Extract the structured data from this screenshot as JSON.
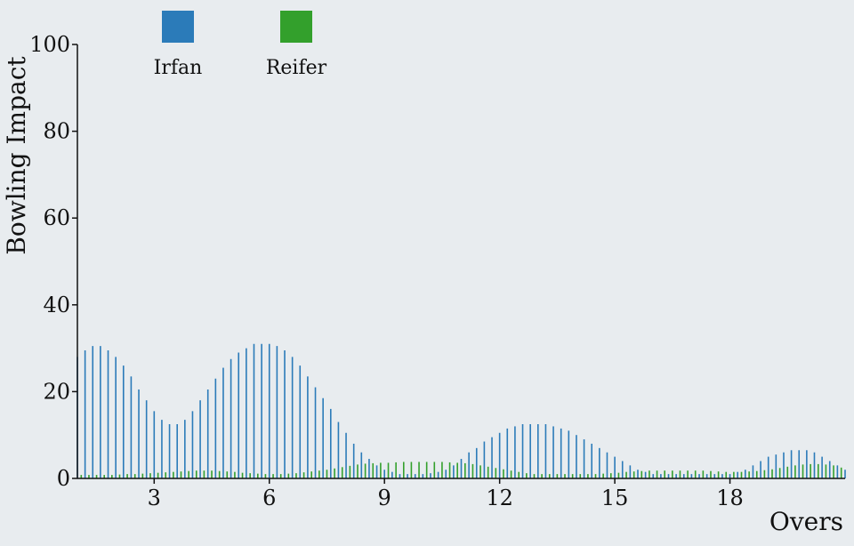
{
  "chart_data": {
    "type": "bar",
    "xlabel": "Overs",
    "ylabel": "Bowling Impact",
    "ylim": [
      0,
      100
    ],
    "xlim": [
      1,
      21
    ],
    "x_ticks": [
      3,
      6,
      9,
      12,
      15,
      18
    ],
    "y_ticks": [
      0,
      20,
      40,
      60,
      80,
      100
    ],
    "grid": false,
    "legend": {
      "position": "top-left"
    },
    "series": [
      {
        "name": "Irfan",
        "color": "#2b7bb9",
        "x": [
          1.0,
          1.2,
          1.4,
          1.6,
          1.8,
          2.0,
          2.2,
          2.4,
          2.6,
          2.8,
          3.0,
          3.2,
          3.4,
          3.6,
          3.8,
          4.0,
          4.2,
          4.4,
          4.6,
          4.8,
          5.0,
          5.2,
          5.4,
          5.6,
          5.8,
          6.0,
          6.2,
          6.4,
          6.6,
          6.8,
          7.0,
          7.2,
          7.4,
          7.6,
          7.8,
          8.0,
          8.2,
          8.4,
          8.6,
          8.8,
          9.0,
          9.2,
          9.4,
          9.6,
          9.8,
          10.0,
          10.2,
          10.4,
          10.6,
          10.8,
          11.0,
          11.2,
          11.4,
          11.6,
          11.8,
          12.0,
          12.2,
          12.4,
          12.6,
          12.8,
          13.0,
          13.2,
          13.4,
          13.6,
          13.8,
          14.0,
          14.2,
          14.4,
          14.6,
          14.8,
          15.0,
          15.2,
          15.4,
          15.6,
          15.8,
          16.0,
          16.2,
          16.4,
          16.6,
          16.8,
          17.0,
          17.2,
          17.4,
          17.6,
          17.8,
          18.0,
          18.2,
          18.4,
          18.6,
          18.8,
          19.0,
          19.2,
          19.4,
          19.6,
          19.8,
          20.0,
          20.2,
          20.4,
          20.6,
          20.8,
          21.0
        ],
        "values": [
          28,
          29.5,
          30.5,
          30.5,
          29.5,
          28,
          26,
          23.5,
          20.5,
          18,
          15.5,
          13.5,
          12.5,
          12.5,
          13.5,
          15.5,
          18,
          20.5,
          23,
          25.5,
          27.5,
          29,
          30,
          31,
          31,
          31,
          30.5,
          29.5,
          28,
          26,
          23.5,
          21,
          18.5,
          16,
          13,
          10.5,
          8,
          6,
          4.5,
          3,
          2,
          1.5,
          1,
          1,
          1,
          1,
          1.2,
          1.5,
          2,
          3,
          4.5,
          6,
          7,
          8.5,
          9.5,
          10.5,
          11.5,
          12,
          12.5,
          12.5,
          12.5,
          12.5,
          12,
          11.5,
          11,
          10,
          9,
          8,
          7,
          6,
          5,
          4,
          3,
          2,
          1.5,
          1,
          1,
          1,
          1,
          1,
          1,
          1,
          1,
          1,
          1,
          1,
          1.5,
          2,
          3,
          4,
          5,
          5.5,
          6,
          6.5,
          6.5,
          6.5,
          6,
          5,
          4,
          3,
          2
        ]
      },
      {
        "name": "Reifer",
        "color": "#33a02c",
        "x": [
          1.1,
          1.3,
          1.5,
          1.7,
          1.9,
          2.1,
          2.3,
          2.5,
          2.7,
          2.9,
          3.1,
          3.3,
          3.5,
          3.7,
          3.9,
          4.1,
          4.3,
          4.5,
          4.7,
          4.9,
          5.1,
          5.3,
          5.5,
          5.7,
          5.9,
          6.1,
          6.3,
          6.5,
          6.7,
          6.9,
          7.1,
          7.3,
          7.5,
          7.7,
          7.9,
          8.1,
          8.3,
          8.5,
          8.7,
          8.9,
          9.1,
          9.3,
          9.5,
          9.7,
          9.9,
          10.1,
          10.3,
          10.5,
          10.7,
          10.9,
          11.1,
          11.3,
          11.5,
          11.7,
          11.9,
          12.1,
          12.3,
          12.5,
          12.7,
          12.9,
          13.1,
          13.3,
          13.5,
          13.7,
          13.9,
          14.1,
          14.3,
          14.5,
          14.7,
          14.9,
          15.1,
          15.3,
          15.5,
          15.7,
          15.9,
          16.1,
          16.3,
          16.5,
          16.7,
          16.9,
          17.1,
          17.3,
          17.5,
          17.7,
          17.9,
          18.1,
          18.3,
          18.5,
          18.7,
          18.9,
          19.1,
          19.3,
          19.5,
          19.7,
          19.9,
          20.1,
          20.3,
          20.5,
          20.7,
          20.9
        ],
        "values": [
          0.8,
          0.8,
          0.8,
          0.8,
          0.8,
          0.9,
          1,
          1,
          1.1,
          1.2,
          1.3,
          1.4,
          1.5,
          1.6,
          1.7,
          1.8,
          1.8,
          1.8,
          1.7,
          1.6,
          1.5,
          1.3,
          1.2,
          1.1,
          1,
          1,
          1,
          1.1,
          1.2,
          1.4,
          1.6,
          1.8,
          2,
          2.3,
          2.6,
          2.9,
          3.2,
          3.4,
          3.5,
          3.6,
          3.6,
          3.7,
          3.8,
          3.8,
          3.8,
          3.8,
          3.8,
          3.8,
          3.7,
          3.6,
          3.5,
          3.3,
          3,
          2.7,
          2.4,
          2.1,
          1.8,
          1.5,
          1.2,
          1,
          1,
          1,
          1,
          1,
          1,
          1,
          1,
          1,
          1.1,
          1.2,
          1.3,
          1.5,
          1.6,
          1.7,
          1.8,
          1.8,
          1.8,
          1.8,
          1.8,
          1.8,
          1.8,
          1.8,
          1.7,
          1.6,
          1.5,
          1.5,
          1.5,
          1.6,
          1.7,
          1.9,
          2.1,
          2.4,
          2.7,
          3,
          3.2,
          3.3,
          3.3,
          3.2,
          3,
          2.5
        ]
      }
    ]
  }
}
